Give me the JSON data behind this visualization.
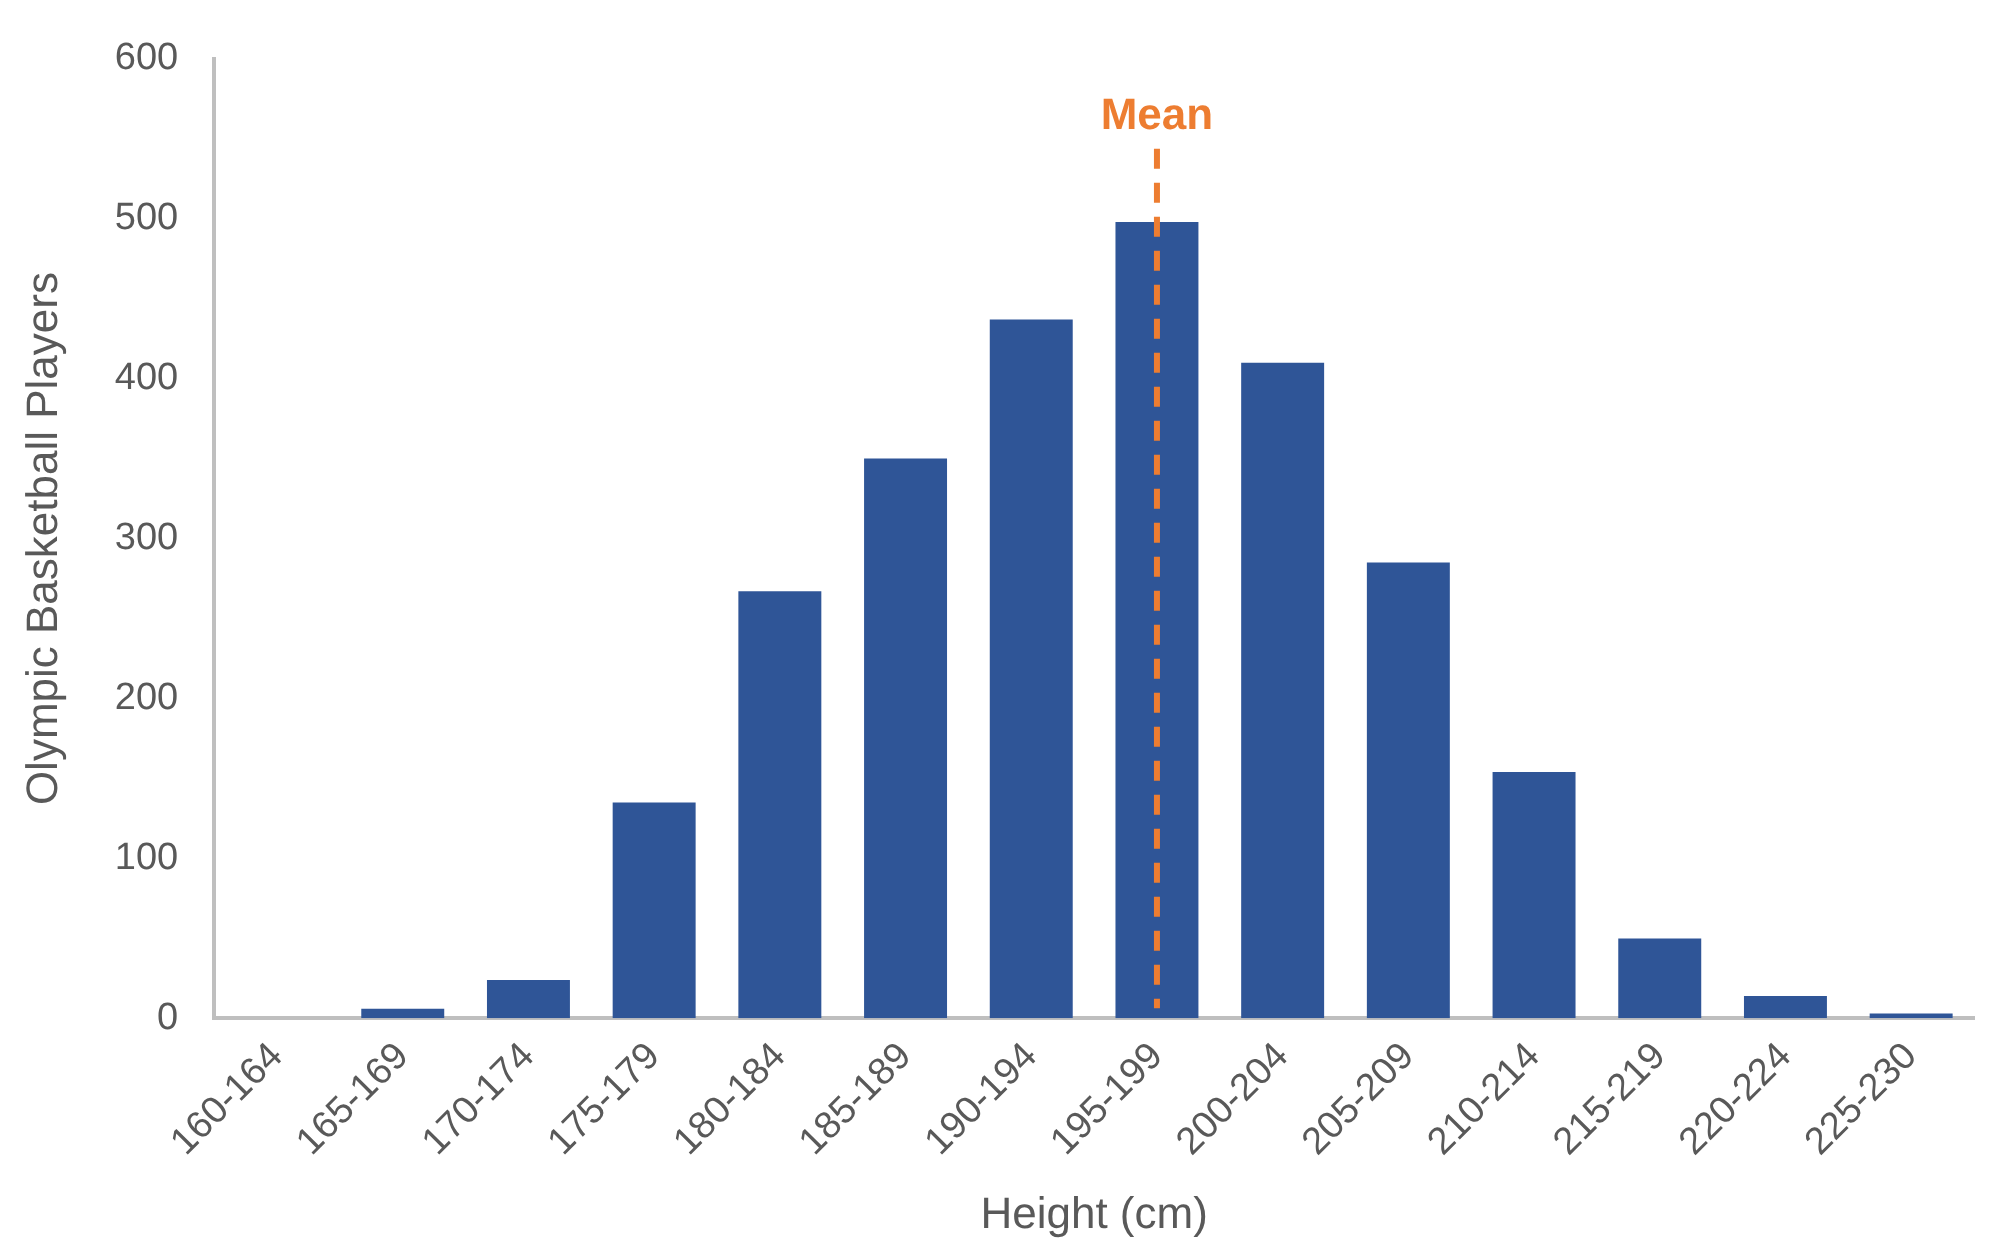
{
  "chart_data": {
    "type": "bar",
    "xlabel": "Height (cm)",
    "ylabel": "Olympic Basketball Players",
    "categories": [
      "160-164",
      "165-169",
      "170-174",
      "175-179",
      "180-184",
      "185-189",
      "190-194",
      "195-199",
      "200-204",
      "205-209",
      "210-214",
      "215-219",
      "220-224",
      "225-230"
    ],
    "values": [
      0,
      6,
      24,
      135,
      267,
      350,
      437,
      498,
      410,
      285,
      154,
      50,
      14,
      3
    ],
    "color": "#2f5597",
    "ylim": [
      0,
      600
    ],
    "yticks": [
      0,
      100,
      200,
      300,
      400,
      500,
      600
    ],
    "grid": false,
    "legend": false,
    "ref_lines": [
      {
        "axis": "x",
        "value": "195-199",
        "label": "Mean",
        "color": "#ed7d31",
        "line_style": "dashed"
      }
    ]
  }
}
